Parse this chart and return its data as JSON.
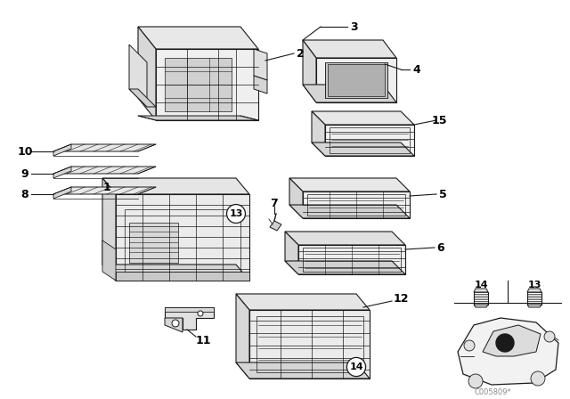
{
  "background_color": "#ffffff",
  "line_color": "#1a1a1a",
  "label_color": "#000000",
  "figsize": [
    6.4,
    4.48
  ],
  "dpi": 100,
  "watermark": "C005809*",
  "lw": 0.7
}
